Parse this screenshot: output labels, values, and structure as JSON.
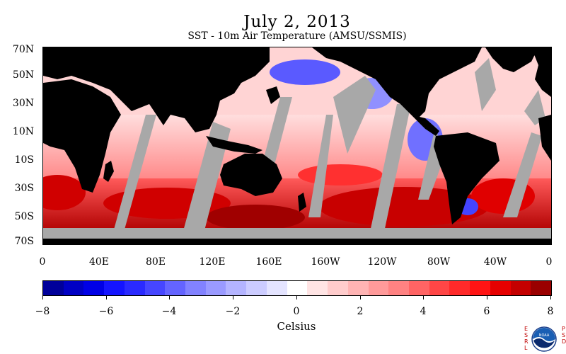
{
  "title": "July 2, 2013",
  "subtitle": "SST - 10m Air Temperature (AMSU/SSMIS)",
  "map": {
    "lat_labels": [
      "70N",
      "50N",
      "30N",
      "10N",
      "10S",
      "30S",
      "50S",
      "70S"
    ],
    "lon_labels": [
      "0",
      "40E",
      "80E",
      "120E",
      "160E",
      "160W",
      "120W",
      "80W",
      "40W",
      "0"
    ],
    "land_color": "#000000",
    "no_data_color": "#a8a8a8"
  },
  "colorbar": {
    "tick_labels": [
      "−8",
      "−6",
      "−4",
      "−2",
      "0",
      "2",
      "4",
      "6",
      "8"
    ],
    "units": "Celsius",
    "colors": [
      "#00009a",
      "#0000c4",
      "#0000e6",
      "#1414ff",
      "#2a2aff",
      "#4646ff",
      "#6464ff",
      "#8282ff",
      "#9a9aff",
      "#b4b4ff",
      "#ccccff",
      "#e4e4ff",
      "#ffffff",
      "#ffe4e4",
      "#ffcccc",
      "#ffb4b4",
      "#ff9a9a",
      "#ff8282",
      "#ff6464",
      "#ff4646",
      "#ff2a2a",
      "#ff1414",
      "#e60000",
      "#c40000",
      "#9a0000"
    ]
  },
  "logo": {
    "left_text": "ESRL",
    "right_text": "PSD",
    "center_text": "NOAA"
  }
}
